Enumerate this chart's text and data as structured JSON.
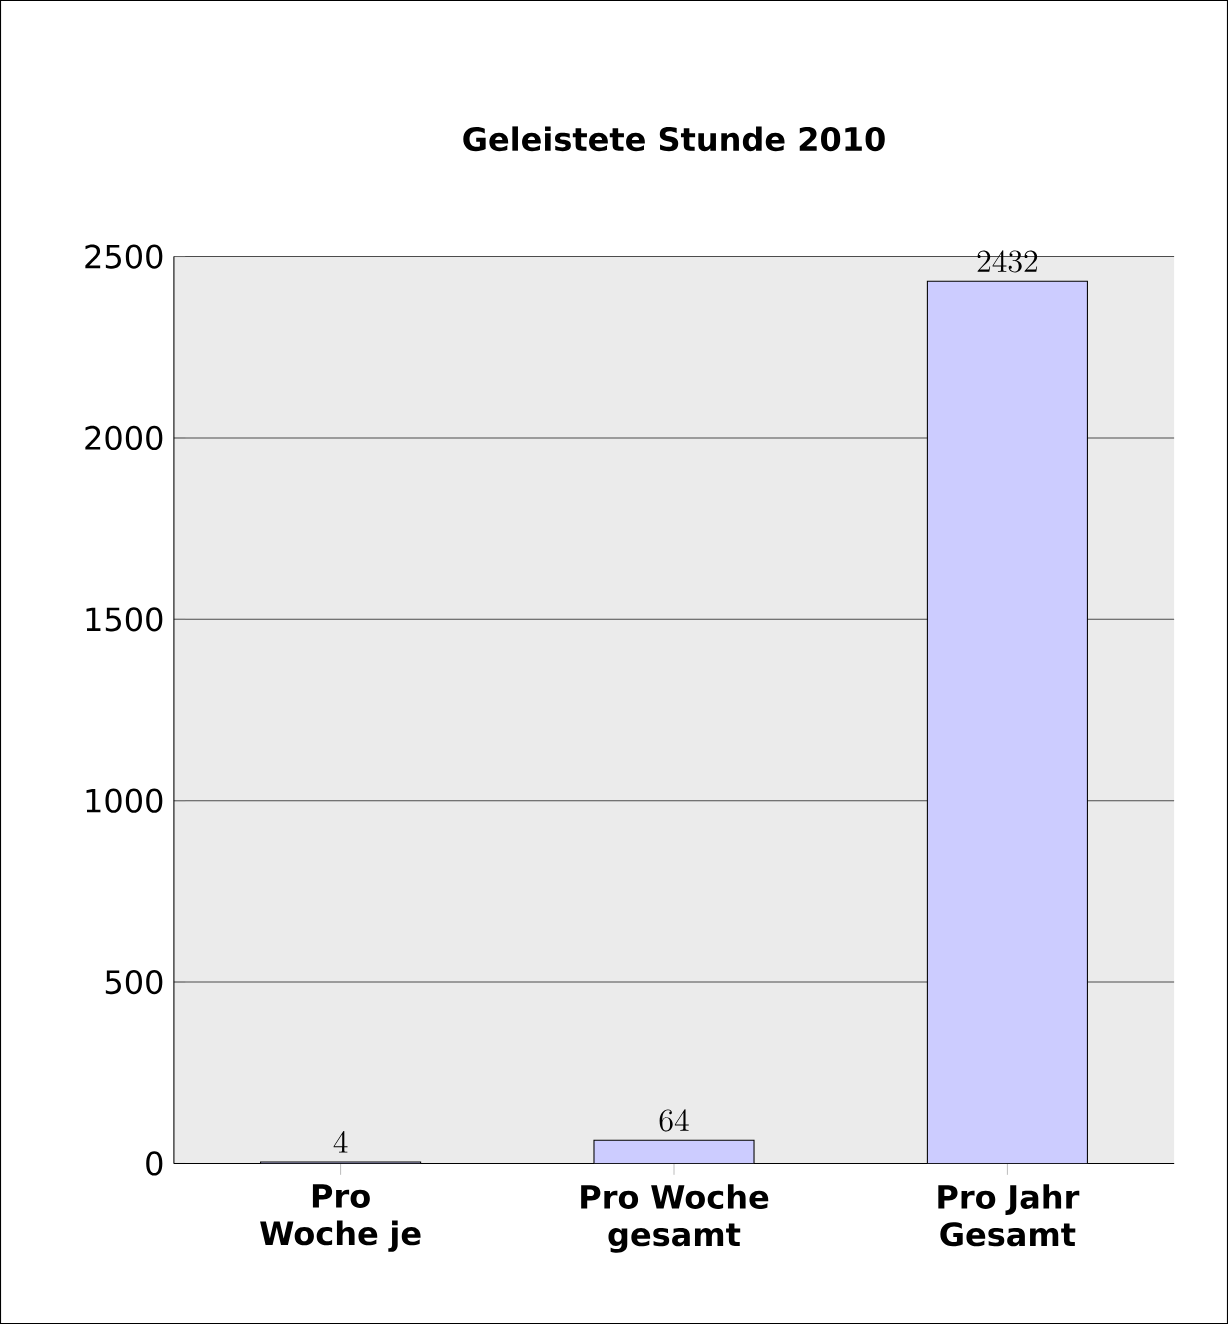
{
  "chart_data": {
    "type": "bar",
    "title": "Geleistete Stunde 2010",
    "categories": [
      "Pro Woche je",
      "Pro Woche gesamt",
      "Pro Jahr Gesamt"
    ],
    "values": [
      4,
      64,
      2432
    ],
    "color": "#ccccff",
    "ylim": [
      0,
      2500
    ],
    "yticks": [
      0,
      500,
      1000,
      1500,
      2000,
      2500
    ],
    "grid": "y",
    "data_labels": true
  }
}
